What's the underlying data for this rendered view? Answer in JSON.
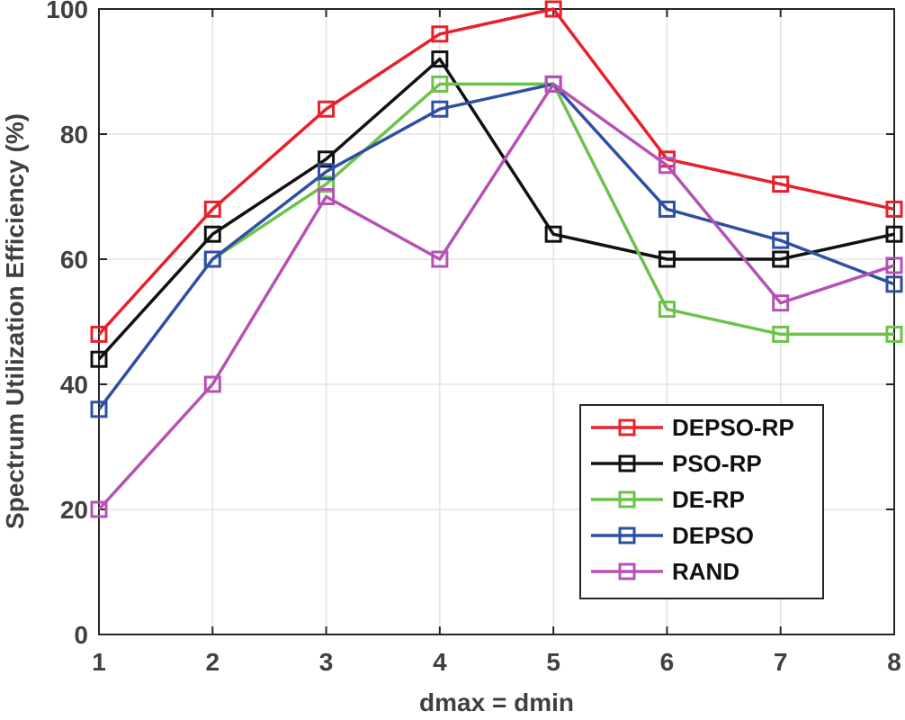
{
  "chart_data": {
    "type": "line",
    "title": "",
    "xlabel": "dmax = dmin",
    "ylabel": "Spectrum Utilization Efficiency (%)",
    "x": [
      1,
      2,
      3,
      4,
      5,
      6,
      7,
      8
    ],
    "xlim": [
      1,
      8
    ],
    "ylim": [
      0,
      100
    ],
    "xticks": [
      "1",
      "2",
      "3",
      "4",
      "5",
      "6",
      "7",
      "8"
    ],
    "yticks": [
      "0",
      "20",
      "40",
      "60",
      "80",
      "100"
    ],
    "ytick_values": [
      0,
      20,
      40,
      60,
      80,
      100
    ],
    "grid": true,
    "legend_position": "bottom-right",
    "marker": "square",
    "series": [
      {
        "name": "DEPSO-RP",
        "color": "#e8202a",
        "values": [
          48,
          68,
          84,
          96,
          100,
          76,
          72,
          68
        ]
      },
      {
        "name": "PSO-RP",
        "color": "#111111",
        "values": [
          44,
          64,
          76,
          92,
          64,
          60,
          60,
          64
        ]
      },
      {
        "name": "DE-RP",
        "color": "#6cc24a",
        "values": [
          null,
          60,
          72,
          88,
          88,
          52,
          48,
          48
        ]
      },
      {
        "name": "DEPSO",
        "color": "#2f4fa3",
        "values": [
          36,
          60,
          74,
          84,
          88,
          68,
          63,
          56
        ]
      },
      {
        "name": "RAND",
        "color": "#b552b5",
        "values": [
          20,
          40,
          70,
          60,
          88,
          75,
          53,
          59
        ]
      }
    ]
  }
}
